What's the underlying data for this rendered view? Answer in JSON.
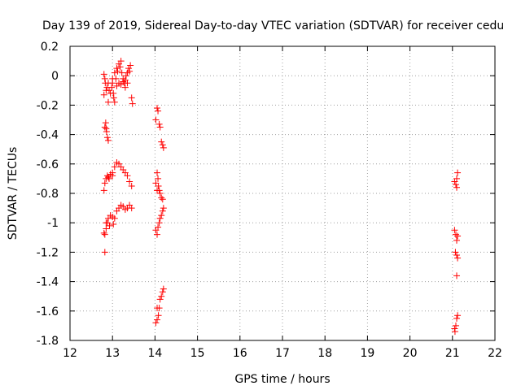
{
  "chart_data": {
    "type": "scatter",
    "title": "Day 139 of 2019, Sidereal Day-to-day VTEC variation (SDTVAR) for receiver cedu",
    "xlabel": "GPS time / hours",
    "ylabel": "SDTVAR / TECUs",
    "xlim": [
      12,
      22
    ],
    "ylim": [
      -1.8,
      0.2
    ],
    "xticks": [
      "12",
      "13",
      "14",
      "15",
      "16",
      "17",
      "18",
      "19",
      "20",
      "21",
      "22"
    ],
    "yticks": [
      "0.2",
      "0",
      "-0.2",
      "-0.4",
      "-0.6",
      "-0.8",
      "-1",
      "-1.2",
      "-1.4",
      "-1.6",
      "-1.8"
    ],
    "grid": true,
    "marker": "plus",
    "color": "#ff0000",
    "series": [
      {
        "name": "SDTVAR",
        "points": [
          [
            12.8,
            0.01
          ],
          [
            12.82,
            -0.02
          ],
          [
            12.83,
            -0.05
          ],
          [
            12.85,
            -0.1
          ],
          [
            12.8,
            -0.13
          ],
          [
            12.87,
            -0.08
          ],
          [
            12.9,
            -0.05
          ],
          [
            12.92,
            -0.1
          ],
          [
            12.95,
            -0.12
          ],
          [
            12.98,
            -0.08
          ],
          [
            13.0,
            -0.05
          ],
          [
            13.02,
            -0.12
          ],
          [
            13.03,
            -0.15
          ],
          [
            13.05,
            -0.18
          ],
          [
            13.0,
            -0.02
          ],
          [
            13.05,
            0.02
          ],
          [
            13.08,
            -0.02
          ],
          [
            13.1,
            0.05
          ],
          [
            13.12,
            0.03
          ],
          [
            13.15,
            0.08
          ],
          [
            13.18,
            0.06
          ],
          [
            13.2,
            0.1
          ],
          [
            13.22,
            0.02
          ],
          [
            13.25,
            -0.02
          ],
          [
            13.28,
            -0.05
          ],
          [
            13.3,
            -0.03
          ],
          [
            13.32,
            0.0
          ],
          [
            13.35,
            0.02
          ],
          [
            13.38,
            0.05
          ],
          [
            13.4,
            0.03
          ],
          [
            13.42,
            0.07
          ],
          [
            13.45,
            -0.15
          ],
          [
            13.47,
            -0.19
          ],
          [
            13.1,
            -0.07
          ],
          [
            13.15,
            -0.05
          ],
          [
            13.2,
            -0.06
          ],
          [
            13.25,
            -0.04
          ],
          [
            13.3,
            -0.08
          ],
          [
            13.35,
            -0.05
          ],
          [
            12.9,
            -0.18
          ],
          [
            12.82,
            -0.35
          ],
          [
            12.84,
            -0.32
          ],
          [
            12.86,
            -0.38
          ],
          [
            12.88,
            -0.42
          ],
          [
            12.9,
            -0.44
          ],
          [
            12.85,
            -0.36
          ],
          [
            12.8,
            -0.78
          ],
          [
            12.82,
            -0.73
          ],
          [
            12.85,
            -0.7
          ],
          [
            12.88,
            -0.68
          ],
          [
            12.9,
            -0.69
          ],
          [
            12.95,
            -0.67
          ],
          [
            13.0,
            -0.66
          ],
          [
            13.05,
            -0.62
          ],
          [
            13.1,
            -0.59
          ],
          [
            13.15,
            -0.6
          ],
          [
            13.2,
            -0.62
          ],
          [
            13.25,
            -0.64
          ],
          [
            13.3,
            -0.66
          ],
          [
            13.35,
            -0.68
          ],
          [
            13.4,
            -0.72
          ],
          [
            13.45,
            -0.75
          ],
          [
            12.92,
            -0.7
          ],
          [
            13.0,
            -0.68
          ],
          [
            12.8,
            -1.07
          ],
          [
            12.82,
            -1.08
          ],
          [
            12.85,
            -1.04
          ],
          [
            12.88,
            -1.0
          ],
          [
            12.9,
            -0.97
          ],
          [
            12.95,
            -0.95
          ],
          [
            13.0,
            -0.96
          ],
          [
            13.02,
            -1.01
          ],
          [
            13.05,
            -0.97
          ],
          [
            13.1,
            -0.92
          ],
          [
            13.15,
            -0.9
          ],
          [
            13.2,
            -0.88
          ],
          [
            13.25,
            -0.89
          ],
          [
            13.3,
            -0.91
          ],
          [
            13.35,
            -0.9
          ],
          [
            13.4,
            -0.88
          ],
          [
            13.45,
            -0.9
          ],
          [
            12.85,
            -1.0
          ],
          [
            12.93,
            -1.02
          ],
          [
            12.82,
            -1.2
          ],
          [
            14.05,
            -0.22
          ],
          [
            14.07,
            -0.24
          ],
          [
            14.02,
            -0.3
          ],
          [
            14.1,
            -0.33
          ],
          [
            14.12,
            -0.35
          ],
          [
            14.15,
            -0.45
          ],
          [
            14.18,
            -0.47
          ],
          [
            14.2,
            -0.49
          ],
          [
            14.05,
            -0.66
          ],
          [
            14.07,
            -0.7
          ],
          [
            14.02,
            -0.73
          ],
          [
            14.08,
            -0.75
          ],
          [
            14.1,
            -0.78
          ],
          [
            14.12,
            -0.8
          ],
          [
            14.15,
            -0.83
          ],
          [
            14.18,
            -0.84
          ],
          [
            14.05,
            -0.78
          ],
          [
            14.02,
            -1.05
          ],
          [
            14.05,
            -1.08
          ],
          [
            14.07,
            -1.03
          ],
          [
            14.1,
            -1.0
          ],
          [
            14.12,
            -0.97
          ],
          [
            14.15,
            -0.95
          ],
          [
            14.18,
            -0.92
          ],
          [
            14.2,
            -0.9
          ],
          [
            14.05,
            -1.58
          ],
          [
            14.1,
            -1.58
          ],
          [
            14.02,
            -1.68
          ],
          [
            14.05,
            -1.66
          ],
          [
            14.08,
            -1.63
          ],
          [
            14.12,
            -1.52
          ],
          [
            14.15,
            -1.5
          ],
          [
            14.18,
            -1.47
          ],
          [
            14.2,
            -1.45
          ],
          [
            21.05,
            -0.72
          ],
          [
            21.08,
            -0.74
          ],
          [
            21.1,
            -0.7
          ],
          [
            21.12,
            -0.66
          ],
          [
            21.1,
            -0.76
          ],
          [
            21.05,
            -1.05
          ],
          [
            21.08,
            -1.08
          ],
          [
            21.1,
            -1.12
          ],
          [
            21.12,
            -1.09
          ],
          [
            21.07,
            -1.2
          ],
          [
            21.1,
            -1.22
          ],
          [
            21.12,
            -1.24
          ],
          [
            21.1,
            -1.36
          ],
          [
            21.05,
            -1.72
          ],
          [
            21.08,
            -1.7
          ],
          [
            21.1,
            -1.65
          ],
          [
            21.12,
            -1.63
          ],
          [
            21.06,
            -1.74
          ]
        ]
      }
    ]
  }
}
